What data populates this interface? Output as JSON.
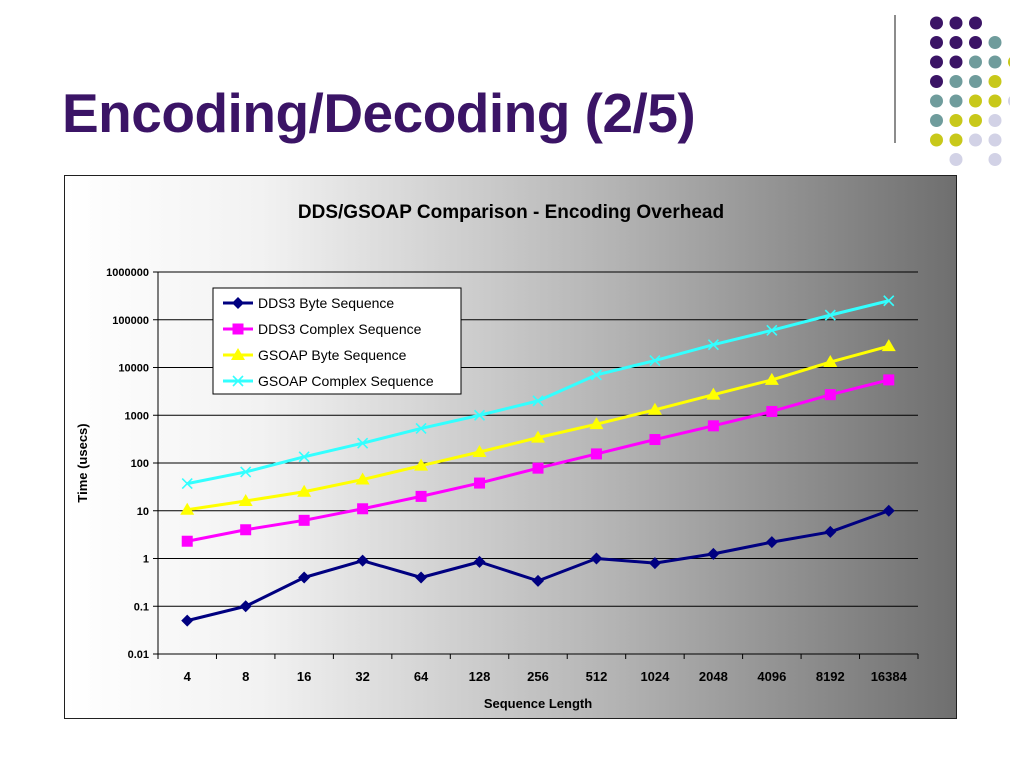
{
  "slide": {
    "title": "Encoding/Decoding (2/5)"
  },
  "decoration": {
    "dot_colors": {
      "purple": "#3b1466",
      "teal": "#6f9c9c",
      "olive": "#c8c81a",
      "lavender": "#d2d2e6"
    },
    "dot_rows": [
      [
        "",
        "purple",
        "purple",
        "purple",
        ""
      ],
      [
        "",
        "purple",
        "purple",
        "purple",
        "teal"
      ],
      [
        "",
        "purple",
        "purple",
        "teal",
        "teal",
        "olive"
      ],
      [
        "",
        "purple",
        "teal",
        "teal",
        "olive",
        ""
      ],
      [
        "",
        "teal",
        "teal",
        "olive",
        "olive",
        "lavender"
      ],
      [
        "",
        "teal",
        "olive",
        "olive",
        "lavender",
        ""
      ],
      [
        "",
        "olive",
        "olive",
        "lavender",
        "lavender",
        ""
      ],
      [
        "",
        "",
        "lavender",
        "",
        "lavender",
        ""
      ]
    ]
  },
  "chart_data": {
    "type": "line",
    "title": "DDS/GSOAP Comparison - Encoding Overhead",
    "xlabel": "Sequence Length",
    "ylabel": "Time (usecs)",
    "y_scale": "log",
    "ylim": [
      0.01,
      1000000
    ],
    "y_ticks": [
      "0.01",
      "0.1",
      "1",
      "10",
      "100",
      "1000",
      "10000",
      "100000",
      "1000000"
    ],
    "categories": [
      "4",
      "8",
      "16",
      "32",
      "64",
      "128",
      "256",
      "512",
      "1024",
      "2048",
      "4096",
      "8192",
      "16384"
    ],
    "grid": "horizontal",
    "legend_position": "top-left",
    "series": [
      {
        "name": "DDS3 Byte Sequence",
        "color": "#000080",
        "marker": "diamond",
        "values": [
          0.05,
          0.1,
          0.4,
          0.9,
          0.4,
          0.85,
          0.34,
          1.0,
          0.8,
          1.25,
          2.2,
          3.6,
          10
        ]
      },
      {
        "name": "DDS3 Complex Sequence",
        "color": "#ff00ff",
        "marker": "square",
        "values": [
          2.3,
          4,
          6.3,
          11,
          20,
          38,
          78,
          155,
          310,
          600,
          1200,
          2700,
          5500
        ]
      },
      {
        "name": "GSOAP Byte Sequence",
        "color": "#ffff00",
        "marker": "triangle",
        "values": [
          10.5,
          16,
          25,
          45,
          88,
          170,
          340,
          650,
          1300,
          2700,
          5500,
          13000,
          28000
        ]
      },
      {
        "name": "GSOAP Complex Sequence",
        "color": "#33ffff",
        "marker": "x",
        "values": [
          37,
          65,
          135,
          260,
          530,
          1000,
          2000,
          7000,
          14000,
          30000,
          60000,
          125000,
          250000
        ]
      }
    ]
  }
}
